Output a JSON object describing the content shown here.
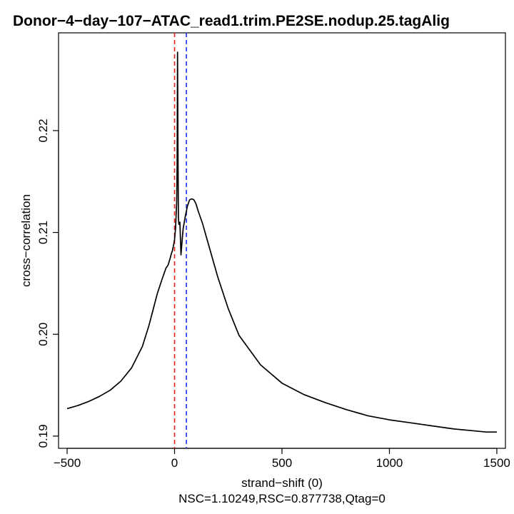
{
  "chart_data": {
    "type": "line",
    "title": "Donor−4−day−107−ATAC_read1.trim.PE2SE.nodup.25.tagAlig",
    "xlabel": "strand−shift (0)",
    "subtitle": "NSC=1.10249,RSC=0.877738,Qtag=0",
    "ylabel": "cross−correlation",
    "xlim": [
      -540,
      1540
    ],
    "ylim": [
      0.1888,
      0.2296
    ],
    "x_ticks": [
      -500,
      0,
      500,
      1000,
      1500
    ],
    "x_tick_labels": [
      "−500",
      "0",
      "500",
      "1000",
      "1500"
    ],
    "y_ticks": [
      0.19,
      0.2,
      0.21,
      0.22
    ],
    "y_tick_labels": [
      "0.19",
      "0.20",
      "0.21",
      "0.22"
    ],
    "vlines": [
      {
        "name": "red-dashed-line",
        "x": 0,
        "color": "#e8251f"
      },
      {
        "name": "blue-dashed-line",
        "x": 55,
        "color": "#1f2de8"
      }
    ],
    "series": [
      {
        "name": "cross-correlation",
        "color": "#000000",
        "x": [
          -500,
          -450,
          -400,
          -350,
          -300,
          -250,
          -200,
          -150,
          -120,
          -100,
          -80,
          -60,
          -40,
          -30,
          -20,
          -15,
          -10,
          -5,
          0,
          5,
          10,
          12,
          14,
          16,
          18,
          20,
          25,
          30,
          35,
          40,
          50,
          60,
          70,
          80,
          90,
          100,
          110,
          130,
          150,
          200,
          250,
          300,
          400,
          500,
          600,
          700,
          800,
          900,
          1000,
          1100,
          1200,
          1300,
          1400,
          1450,
          1500
        ],
        "values": [
          0.1927,
          0.193,
          0.1934,
          0.1939,
          0.1945,
          0.1954,
          0.1967,
          0.1988,
          0.2008,
          0.2024,
          0.204,
          0.2053,
          0.2065,
          0.2068,
          0.2075,
          0.2079,
          0.2082,
          0.2087,
          0.2093,
          0.2105,
          0.213,
          0.2165,
          0.2277,
          0.218,
          0.2115,
          0.2108,
          0.211,
          0.2078,
          0.2092,
          0.2104,
          0.2116,
          0.2126,
          0.2132,
          0.2133,
          0.2132,
          0.2128,
          0.2121,
          0.2109,
          0.2094,
          0.2057,
          0.2025,
          0.1999,
          0.197,
          0.1952,
          0.1941,
          0.1933,
          0.1926,
          0.192,
          0.1916,
          0.1913,
          0.191,
          0.1907,
          0.1905,
          0.1904,
          0.1904
        ]
      }
    ]
  }
}
